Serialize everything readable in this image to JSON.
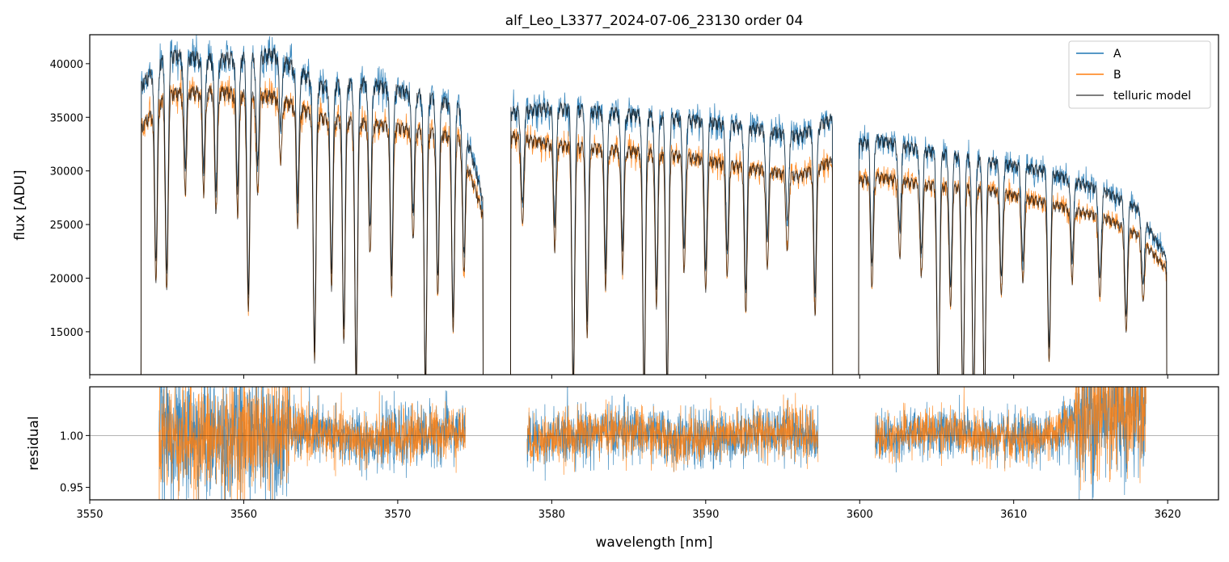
{
  "chart_data": [
    {
      "panel": "top",
      "type": "line",
      "title": "alf_Leo_L3377_2024-07-06_23130  order 04",
      "xlabel": "",
      "ylabel": "flux [ADU]",
      "xlim": [
        3550,
        3623.3
      ],
      "ylim": [
        11000,
        42700
      ],
      "yticks": [
        15000,
        20000,
        25000,
        30000,
        35000,
        40000
      ],
      "ytick_labels": [
        "15000",
        "20000",
        "25000",
        "30000",
        "35000",
        "40000"
      ],
      "xticks": [
        3550,
        3560,
        3570,
        3580,
        3590,
        3600,
        3610,
        3620
      ],
      "legend": {
        "position": "top-right",
        "entries": [
          "A",
          "B",
          "telluric model"
        ]
      },
      "series": [
        {
          "name": "A",
          "color": "#1f77b4",
          "segments": [
            [
              3553.3,
              3575.6
            ],
            [
              3577.3,
              3598.3
            ],
            [
              3599.9,
              3620.0
            ]
          ],
          "continuum_x": [
            3553.3,
            3555,
            3558,
            3562,
            3565,
            3568,
            3572,
            3574,
            3575.5,
            3577.3,
            3580,
            3584,
            3588,
            3592,
            3596,
            3598.3,
            3599.9,
            3601,
            3604,
            3608,
            3612,
            3616,
            3618,
            3620
          ],
          "continuum_y": [
            38500,
            41500,
            41000,
            41500,
            38500,
            38800,
            37500,
            36500,
            28000,
            36000,
            36500,
            36000,
            35500,
            34800,
            33800,
            35500,
            33000,
            33500,
            32500,
            31500,
            30500,
            28500,
            27000,
            22000
          ]
        },
        {
          "name": "B",
          "color": "#ff7f0e",
          "segments": [
            [
              3553.3,
              3575.6
            ],
            [
              3577.3,
              3598.3
            ],
            [
              3599.9,
              3620.0
            ]
          ],
          "continuum_x": [
            3553.3,
            3555,
            3558,
            3562,
            3565,
            3568,
            3572,
            3574,
            3575.5,
            3577.3,
            3580,
            3584,
            3588,
            3592,
            3596,
            3598.3,
            3599.9,
            3601,
            3604,
            3608,
            3612,
            3616,
            3618,
            3620
          ],
          "continuum_y": [
            34500,
            37800,
            38000,
            37500,
            35500,
            35000,
            34200,
            33500,
            26500,
            33800,
            33000,
            32500,
            32000,
            31000,
            30000,
            31500,
            29500,
            30000,
            29200,
            28800,
            27500,
            26000,
            24500,
            21000
          ]
        },
        {
          "name": "telluric model",
          "color": "#000000"
        }
      ],
      "absorption_lines": [
        {
          "x": 3554.3,
          "depth": 0.45
        },
        {
          "x": 3555.0,
          "depth": 0.5
        },
        {
          "x": 3556.2,
          "depth": 0.25
        },
        {
          "x": 3557.4,
          "depth": 0.25
        },
        {
          "x": 3558.2,
          "depth": 0.3
        },
        {
          "x": 3559.6,
          "depth": 0.3
        },
        {
          "x": 3560.3,
          "depth": 0.55
        },
        {
          "x": 3560.9,
          "depth": 0.25
        },
        {
          "x": 3562.4,
          "depth": 0.15
        },
        {
          "x": 3563.5,
          "depth": 0.3
        },
        {
          "x": 3564.6,
          "depth": 0.65
        },
        {
          "x": 3565.7,
          "depth": 0.45
        },
        {
          "x": 3566.5,
          "depth": 0.6
        },
        {
          "x": 3567.3,
          "depth": 0.72
        },
        {
          "x": 3568.2,
          "depth": 0.35
        },
        {
          "x": 3569.6,
          "depth": 0.45
        },
        {
          "x": 3571.0,
          "depth": 0.3
        },
        {
          "x": 3571.8,
          "depth": 0.72
        },
        {
          "x": 3572.6,
          "depth": 0.45
        },
        {
          "x": 3573.6,
          "depth": 0.55
        },
        {
          "x": 3574.3,
          "depth": 0.35
        },
        {
          "x": 3578.1,
          "depth": 0.25
        },
        {
          "x": 3580.2,
          "depth": 0.3
        },
        {
          "x": 3581.4,
          "depth": 0.72
        },
        {
          "x": 3582.3,
          "depth": 0.55
        },
        {
          "x": 3583.5,
          "depth": 0.4
        },
        {
          "x": 3584.6,
          "depth": 0.35
        },
        {
          "x": 3586.0,
          "depth": 0.72
        },
        {
          "x": 3586.8,
          "depth": 0.45
        },
        {
          "x": 3587.5,
          "depth": 0.72
        },
        {
          "x": 3588.6,
          "depth": 0.35
        },
        {
          "x": 3590.0,
          "depth": 0.4
        },
        {
          "x": 3591.4,
          "depth": 0.35
        },
        {
          "x": 3592.6,
          "depth": 0.45
        },
        {
          "x": 3594.0,
          "depth": 0.3
        },
        {
          "x": 3595.3,
          "depth": 0.25
        },
        {
          "x": 3597.1,
          "depth": 0.45
        },
        {
          "x": 3600.8,
          "depth": 0.35
        },
        {
          "x": 3602.6,
          "depth": 0.25
        },
        {
          "x": 3604.0,
          "depth": 0.3
        },
        {
          "x": 3605.1,
          "depth": 0.72
        },
        {
          "x": 3605.9,
          "depth": 0.4
        },
        {
          "x": 3606.7,
          "depth": 0.72
        },
        {
          "x": 3607.4,
          "depth": 0.72
        },
        {
          "x": 3608.1,
          "depth": 0.72
        },
        {
          "x": 3609.2,
          "depth": 0.35
        },
        {
          "x": 3610.6,
          "depth": 0.3
        },
        {
          "x": 3612.3,
          "depth": 0.55
        },
        {
          "x": 3613.8,
          "depth": 0.25
        },
        {
          "x": 3615.6,
          "depth": 0.3
        },
        {
          "x": 3617.3,
          "depth": 0.4
        },
        {
          "x": 3618.4,
          "depth": 0.25
        }
      ]
    },
    {
      "panel": "bottom",
      "type": "line",
      "title": "",
      "xlabel": "wavelength [nm]",
      "ylabel": "residual",
      "xlim": [
        3550,
        3623.3
      ],
      "ylim": [
        0.938,
        1.047
      ],
      "yticks": [
        0.95,
        1.0
      ],
      "ytick_labels": [
        "0.95",
        "1.00"
      ],
      "xticks": [
        3550,
        3560,
        3570,
        3580,
        3590,
        3600,
        3610,
        3620
      ],
      "xtick_labels": [
        "3550",
        "3560",
        "3570",
        "3580",
        "3590",
        "3600",
        "3610",
        "3620"
      ],
      "reference_line": 1.0,
      "series": [
        {
          "name": "A",
          "color": "#1f77b4",
          "segments": [
            [
              3554.5,
              3574.4
            ],
            [
              3578.4,
              3597.3
            ],
            [
              3601.0,
              3618.6
            ]
          ]
        },
        {
          "name": "B",
          "color": "#ff7f0e",
          "segments": [
            [
              3554.5,
              3574.4
            ],
            [
              3578.4,
              3597.3
            ],
            [
              3601.0,
              3618.6
            ]
          ]
        }
      ]
    }
  ]
}
